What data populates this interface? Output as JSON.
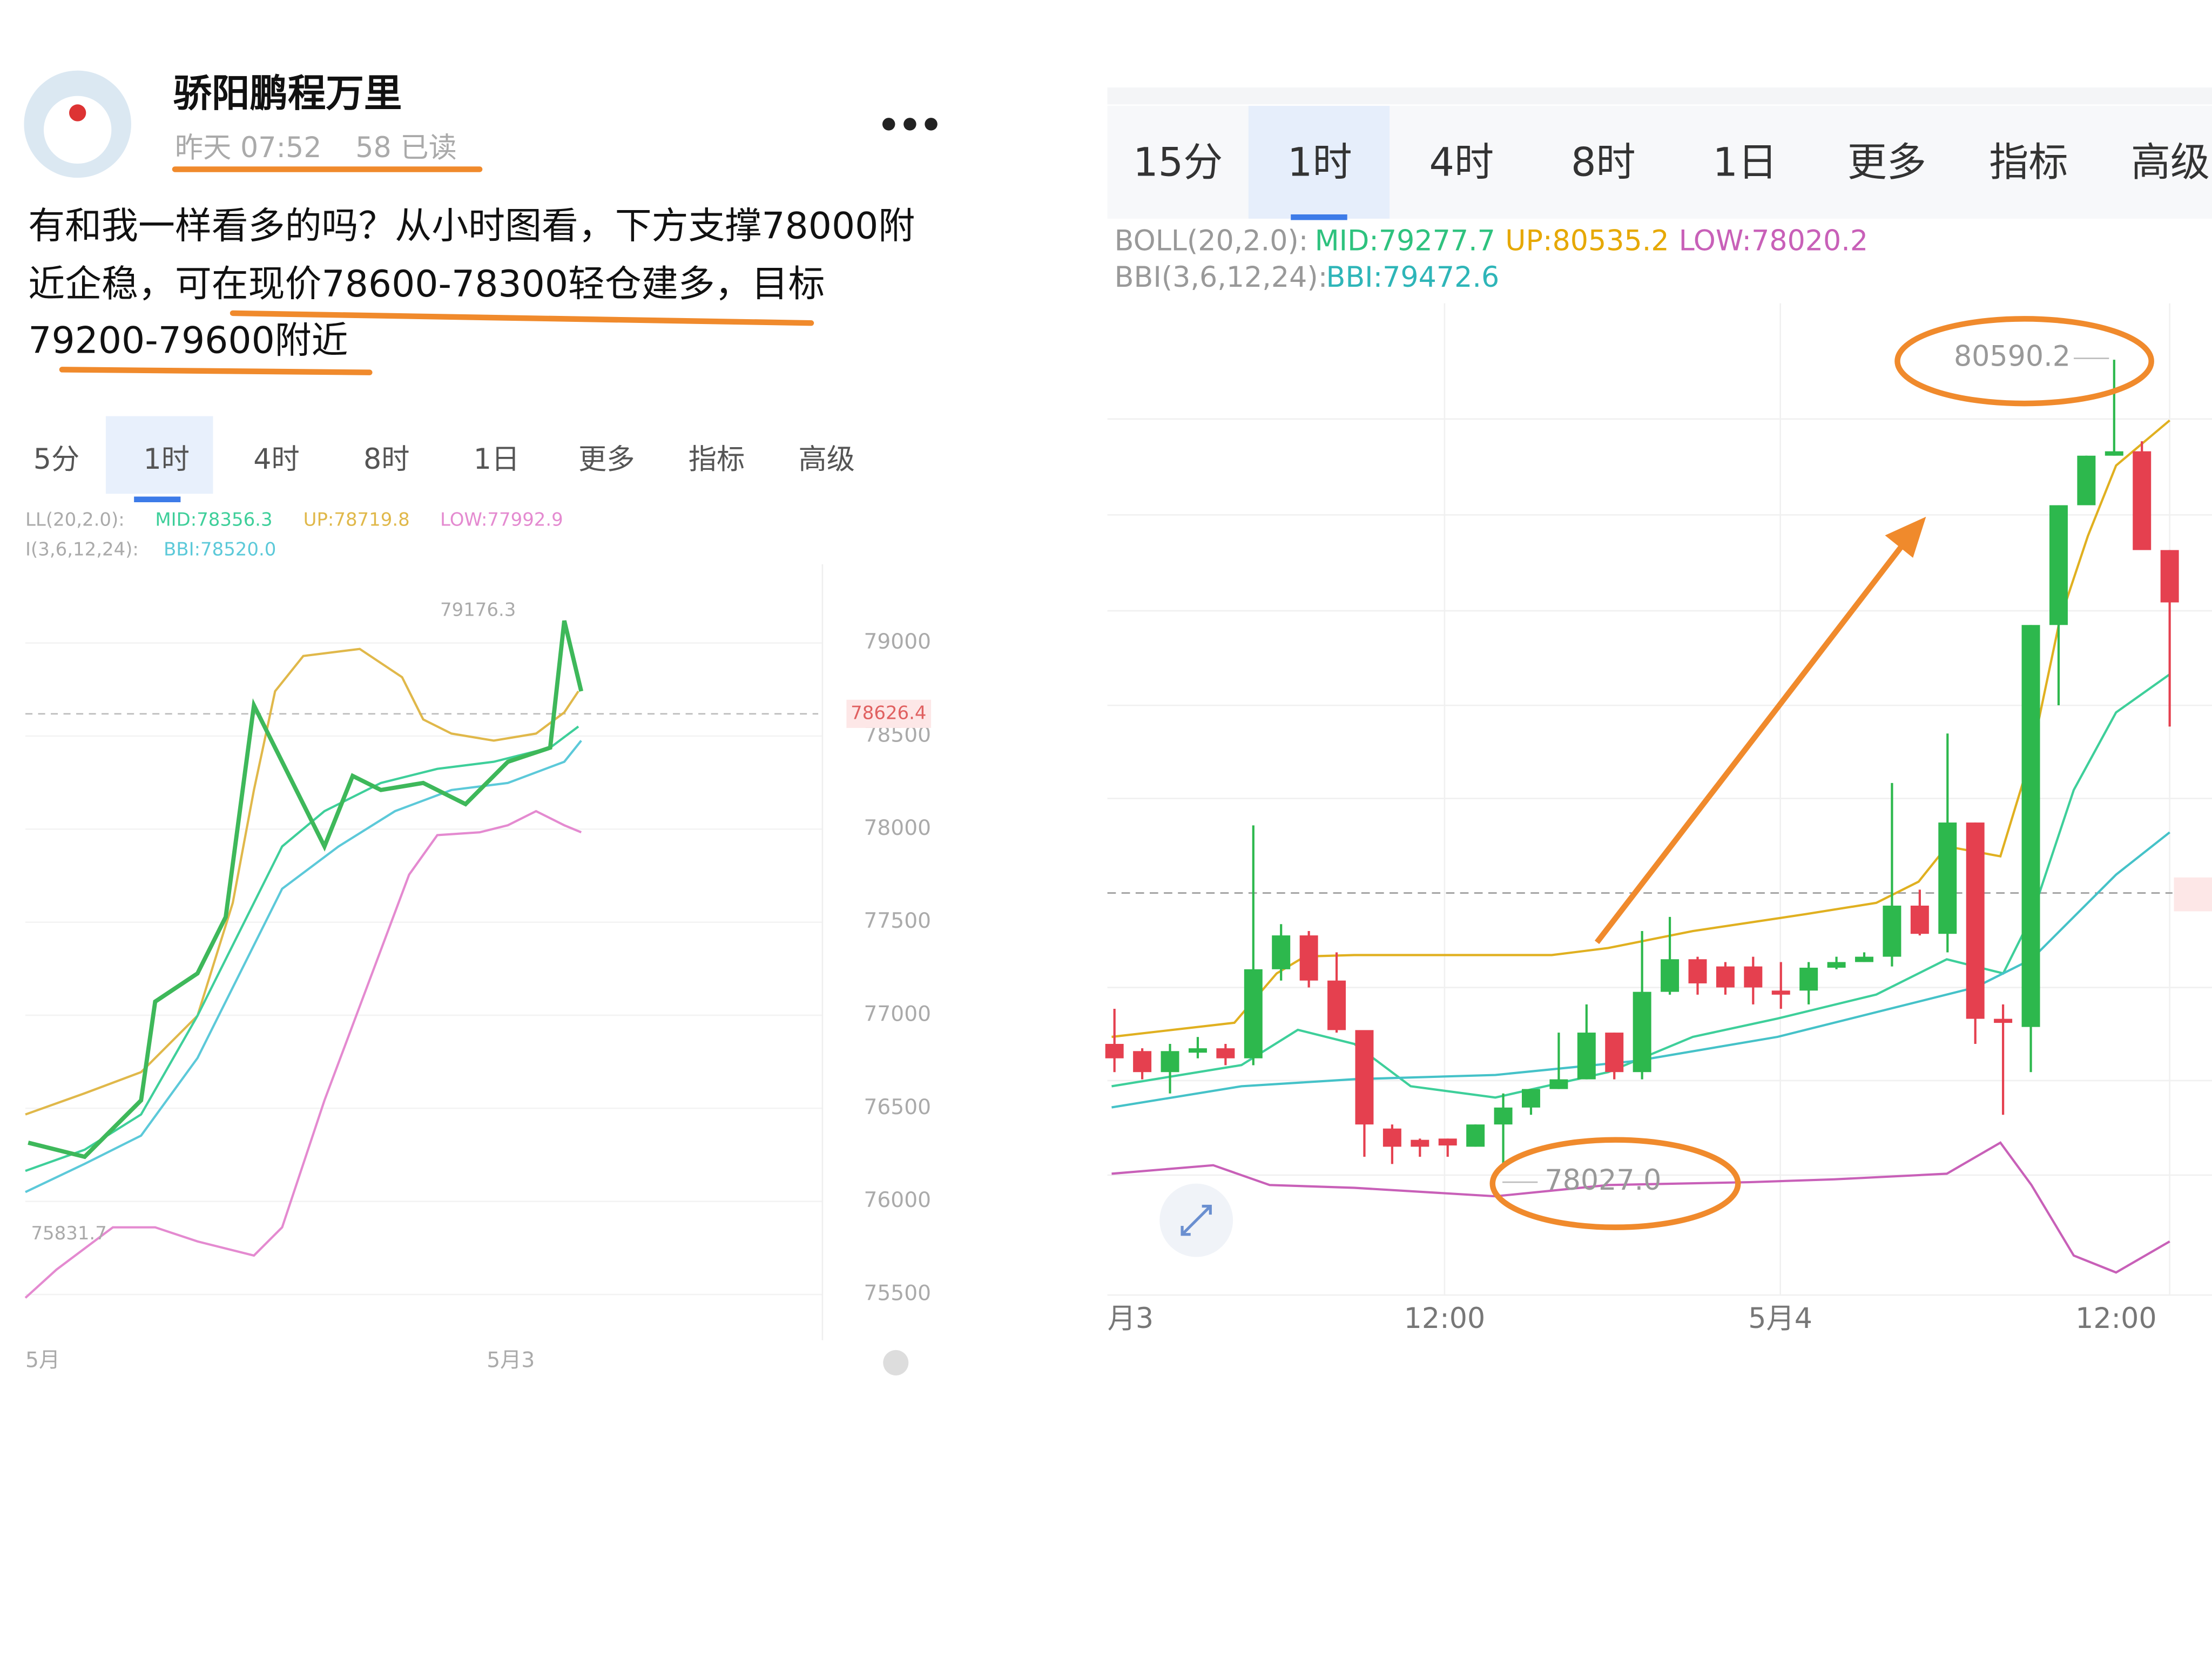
{
  "post": {
    "author": "骄阳鹏程万里",
    "meta": [
      "昨天 07:52",
      "58 已读"
    ],
    "text": [
      "有和我一样看多的吗？从小时图看，下方支撑78000附",
      "近企稳，可在现价78600-78300轻仓建多，目标",
      "79200-79600附近"
    ]
  },
  "left_chart": {
    "tabs": [
      "5分",
      "1时",
      "4时",
      "8时",
      "1日",
      "更多",
      "指标",
      "高级"
    ],
    "indicators": [
      [
        "LL(20,2.0):",
        "MID:78356.3",
        "UP:78719.8",
        "LOW:77992.9"
      ],
      [
        "I(3,6,12,24):",
        "BBI:78520.0"
      ]
    ],
    "annotations": [
      "79176.3",
      "75831.7",
      "78626.4"
    ],
    "xlabels": [
      "5月",
      "5月3"
    ],
    "ylim": [
      75300,
      79400
    ],
    "yticks": [
      79000,
      78500,
      78000,
      77500,
      77000,
      76500,
      76000,
      75500
    ]
  },
  "right_chart": {
    "tabs": [
      "15分",
      "1时",
      "4时",
      "8时",
      "1日",
      "更多",
      "指标",
      "高级"
    ],
    "indicators": [
      [
        "BOLL(20,2.0):",
        "MID:79277.7",
        "UP:80535.2",
        "LOW:78020.2"
      ],
      [
        "BBI(3,6,12,24):",
        "BBI:79472.6"
      ]
    ],
    "annotations": [
      "80590.2",
      "78027.0"
    ],
    "xlabels": [
      "月3",
      "12:00",
      "5月4",
      "12:00"
    ],
    "ylim": [
      77598,
      80770
    ],
    "candles": [
      {
        "open": 78408,
        "high": 78520,
        "low": 78318,
        "close": 78362
      },
      {
        "open": 78385,
        "high": 78394,
        "low": 78295,
        "close": 78318
      },
      {
        "open": 78318,
        "high": 78408,
        "low": 78250,
        "close": 78385
      },
      {
        "open": 78380,
        "high": 78430,
        "low": 78362,
        "close": 78394
      },
      {
        "open": 78394,
        "high": 78408,
        "low": 78340,
        "close": 78362
      },
      {
        "open": 78362,
        "high": 79105,
        "low": 78340,
        "close": 78646
      },
      {
        "open": 78646,
        "high": 78790,
        "low": 78610,
        "close": 78754
      },
      {
        "open": 78754,
        "high": 78768,
        "low": 78588,
        "close": 78610
      },
      {
        "open": 78610,
        "high": 78700,
        "low": 78444,
        "close": 78452
      },
      {
        "open": 78452,
        "high": 78452,
        "low": 78048,
        "close": 78151
      },
      {
        "open": 78138,
        "high": 78151,
        "low": 78025,
        "close": 78080
      },
      {
        "open": 78102,
        "high": 78106,
        "low": 78048,
        "close": 78080
      },
      {
        "open": 78106,
        "high": 78106,
        "low": 78048,
        "close": 78084
      },
      {
        "open": 78080,
        "high": 78151,
        "low": 78080,
        "close": 78151
      },
      {
        "open": 78151,
        "high": 78250,
        "low": 78025,
        "close": 78205
      },
      {
        "open": 78205,
        "high": 78264,
        "low": 78182,
        "close": 78264
      },
      {
        "open": 78264,
        "high": 78444,
        "low": 78264,
        "close": 78295
      },
      {
        "open": 78295,
        "high": 78534,
        "low": 78295,
        "close": 78444
      },
      {
        "open": 78444,
        "high": 78444,
        "low": 78295,
        "close": 78318
      },
      {
        "open": 78318,
        "high": 78768,
        "low": 78295,
        "close": 78574
      },
      {
        "open": 78574,
        "high": 78813,
        "low": 78565,
        "close": 78678
      },
      {
        "open": 78678,
        "high": 78686,
        "low": 78565,
        "close": 78601
      },
      {
        "open": 78655,
        "high": 78669,
        "low": 78565,
        "close": 78588
      },
      {
        "open": 78655,
        "high": 78686,
        "low": 78534,
        "close": 78588
      },
      {
        "open": 78578,
        "high": 78669,
        "low": 78520,
        "close": 78565
      },
      {
        "open": 78578,
        "high": 78669,
        "low": 78534,
        "close": 78651
      },
      {
        "open": 78651,
        "high": 78686,
        "low": 78646,
        "close": 78669
      },
      {
        "open": 78669,
        "high": 78700,
        "low": 78669,
        "close": 78686
      },
      {
        "open": 78686,
        "high": 79240,
        "low": 78655,
        "close": 78849
      },
      {
        "open": 78849,
        "high": 78900,
        "low": 78754,
        "close": 78759
      },
      {
        "open": 78759,
        "high": 79398,
        "low": 78700,
        "close": 79114
      },
      {
        "open": 79114,
        "high": 79114,
        "low": 78408,
        "close": 78488
      },
      {
        "open": 78488,
        "high": 78534,
        "low": 78182,
        "close": 78475
      },
      {
        "open": 78462,
        "high": 79744,
        "low": 78318,
        "close": 79744
      },
      {
        "open": 79744,
        "high": 80126,
        "low": 79488,
        "close": 80126
      },
      {
        "open": 80126,
        "high": 80284,
        "low": 80126,
        "close": 80284
      },
      {
        "open": 80284,
        "high": 80590,
        "low": 80284,
        "close": 80298
      },
      {
        "open": 80298,
        "high": 80330,
        "low": 79983,
        "close": 79983
      },
      {
        "open": 79983,
        "high": 79983,
        "low": 79420,
        "close": 79816
      }
    ]
  }
}
